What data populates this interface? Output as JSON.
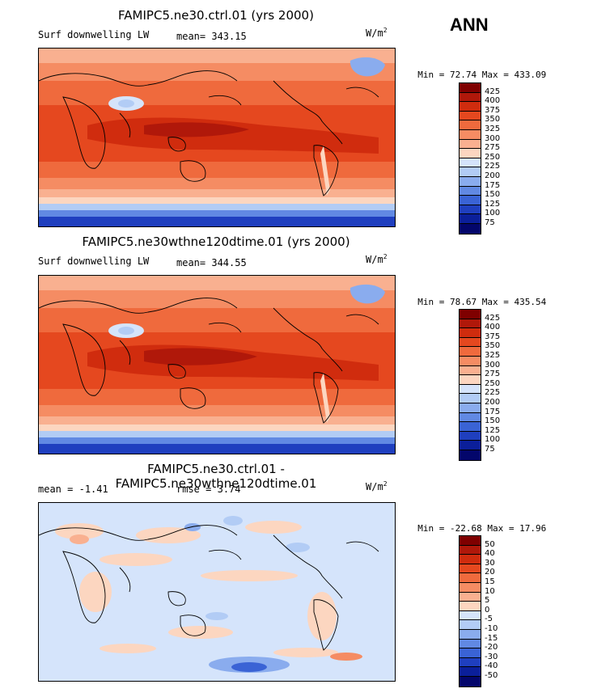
{
  "season": "ANN",
  "panels": [
    {
      "title": "FAMIPC5.ne30.ctrl.01 (yrs 2000)",
      "left_label": "Surf downwelling LW",
      "stat_label": "mean=",
      "stat_value": "343.15",
      "units": "W/m",
      "units_sup": "2",
      "min_label": "Min =",
      "min_value": "72.74",
      "max_label": "Max =",
      "max_value": "433.09",
      "levels": [
        "425",
        "400",
        "375",
        "350",
        "325",
        "300",
        "275",
        "250",
        "225",
        "200",
        "175",
        "150",
        "125",
        "100",
        "75"
      ],
      "colors": [
        "#7f0000",
        "#b0180a",
        "#d02c0e",
        "#e5481f",
        "#ef6a3d",
        "#f58c63",
        "#f9b090",
        "#fcd6c0",
        "#d5e4fb",
        "#b2ccf5",
        "#8aacee",
        "#6189e3",
        "#3a63d5",
        "#1f3fbf",
        "#0b1f9a",
        "#03066b"
      ]
    },
    {
      "title": "FAMIPC5.ne30wthne120dtime.01 (yrs 2000)",
      "left_label": "Surf downwelling LW",
      "stat_label": "mean=",
      "stat_value": "344.55",
      "units": "W/m",
      "units_sup": "2",
      "min_label": "Min =",
      "min_value": "78.67",
      "max_label": "Max =",
      "max_value": "435.54",
      "levels": [
        "425",
        "400",
        "375",
        "350",
        "325",
        "300",
        "275",
        "250",
        "225",
        "200",
        "175",
        "150",
        "125",
        "100",
        "75"
      ],
      "colors": [
        "#7f0000",
        "#b0180a",
        "#d02c0e",
        "#e5481f",
        "#ef6a3d",
        "#f58c63",
        "#f9b090",
        "#fcd6c0",
        "#d5e4fb",
        "#b2ccf5",
        "#8aacee",
        "#6189e3",
        "#3a63d5",
        "#1f3fbf",
        "#0b1f9a",
        "#03066b"
      ]
    },
    {
      "title": "FAMIPC5.ne30.ctrl.01 - FAMIPC5.ne30wthne120dtime.01",
      "left_label": "mean =",
      "left_value": "-1.41",
      "stat_label": "rmse =",
      "stat_value": "3.74",
      "units": "W/m",
      "units_sup": "2",
      "min_label": "Min =",
      "min_value": "-22.68",
      "max_label": "Max =",
      "max_value": "17.96",
      "levels": [
        "50",
        "40",
        "30",
        "20",
        "15",
        "10",
        "5",
        "0",
        "-5",
        "-10",
        "-15",
        "-20",
        "-30",
        "-40",
        "-50"
      ],
      "colors": [
        "#7f0000",
        "#b0180a",
        "#d02c0e",
        "#e5481f",
        "#ef6a3d",
        "#f58c63",
        "#f9b090",
        "#fcd6c0",
        "#d5e4fb",
        "#b2ccf5",
        "#8aacee",
        "#6189e3",
        "#3a63d5",
        "#1f3fbf",
        "#0b1f9a",
        "#03066b"
      ]
    }
  ]
}
